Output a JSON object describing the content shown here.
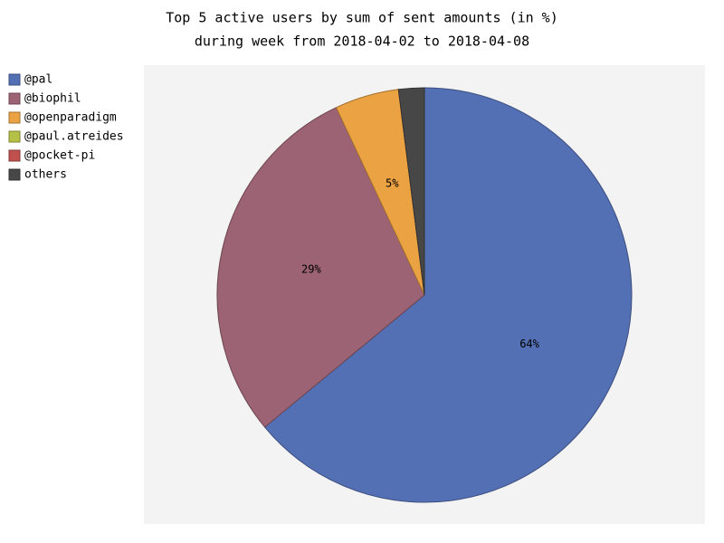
{
  "chart_data": {
    "type": "pie",
    "title": "Top 5 active users by sum of sent amounts (in %)",
    "subtitle": "during week from 2018-04-02 to 2018-04-08",
    "categories": [
      "@pal",
      "@biophil",
      "@openparadigm",
      "@paul.atreides",
      "@pocket-pi",
      "others"
    ],
    "values": [
      64,
      29,
      5,
      0,
      0,
      2
    ],
    "value_labels": [
      "64%",
      "29%",
      "5%",
      null,
      null,
      null
    ],
    "colors": [
      "#5470b4",
      "#9b6373",
      "#eaa242",
      "#b5c046",
      "#c0504d",
      "#474747"
    ],
    "legend": "left"
  }
}
